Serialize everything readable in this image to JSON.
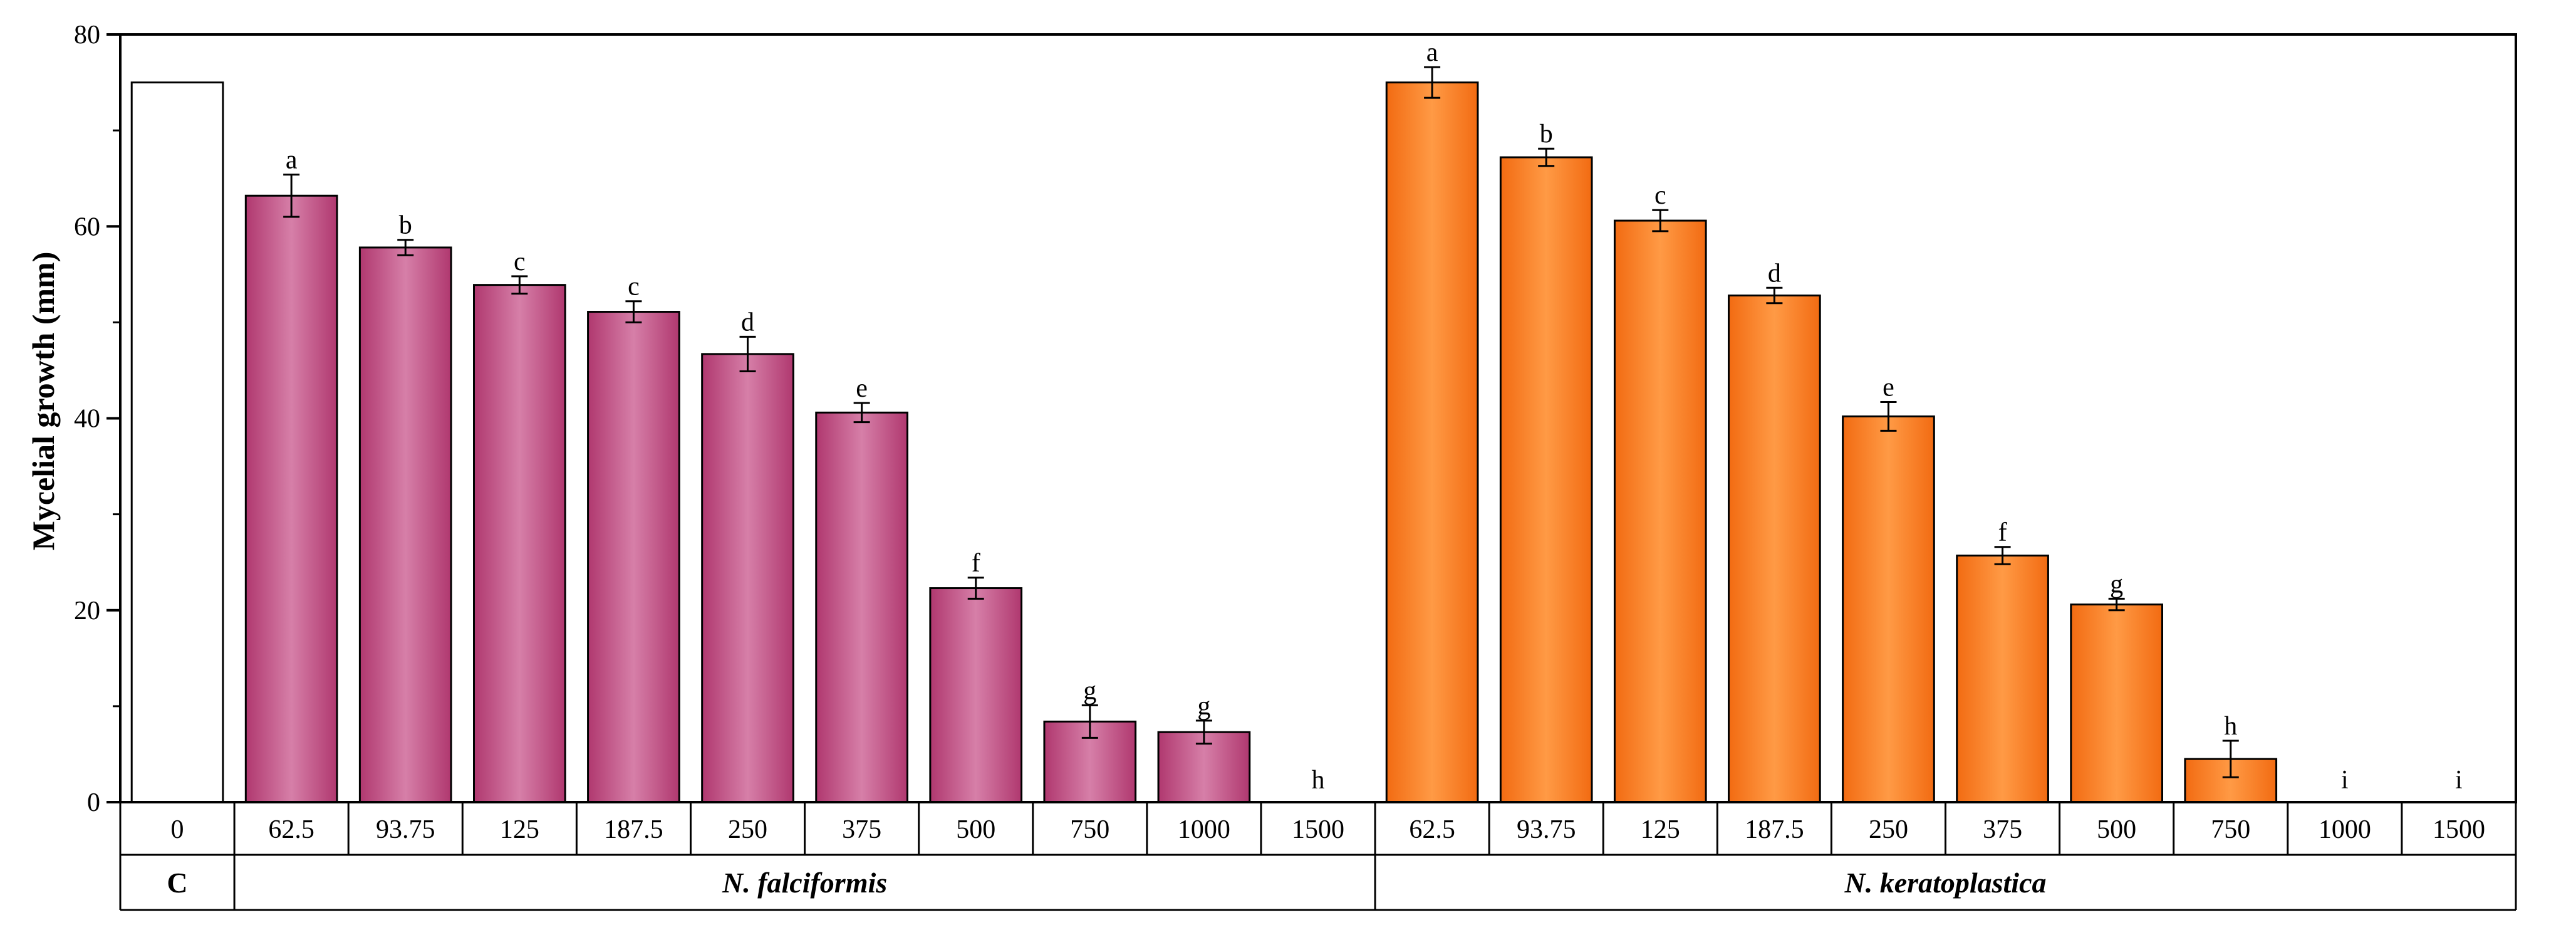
{
  "chart_data": {
    "type": "bar",
    "title": "",
    "xlabel": "",
    "ylabel": "Mycelial growth (mm)",
    "ylim": [
      0,
      80
    ],
    "yticks": [
      0,
      20,
      40,
      60,
      80
    ],
    "grid": false,
    "control": {
      "group_label": "C",
      "category": "0",
      "value": 75.0,
      "color": "#ffffff"
    },
    "groups": [
      {
        "name": "N. falciformis",
        "color_dark": "#b0386f",
        "color_light": "#d67fa8",
        "categories": [
          "62.5",
          "93.75",
          "125",
          "187.5",
          "250",
          "375",
          "500",
          "750",
          "1000",
          "1500"
        ],
        "values": [
          63.2,
          57.8,
          53.9,
          51.1,
          46.7,
          40.6,
          22.3,
          8.4,
          7.3,
          0
        ],
        "errors": [
          2.2,
          0.8,
          0.9,
          1.1,
          1.8,
          1.0,
          1.1,
          1.7,
          1.2,
          0
        ],
        "letters": [
          "a",
          "b",
          "c",
          "c",
          "d",
          "e",
          "f",
          "g",
          "g",
          "h"
        ]
      },
      {
        "name": "N. keratoplastica",
        "color_dark": "#f26b12",
        "color_light": "#ff9a45",
        "categories": [
          "62.5",
          "93.75",
          "125",
          "187.5",
          "250",
          "375",
          "500",
          "750",
          "1000",
          "1500"
        ],
        "values": [
          75.0,
          67.2,
          60.6,
          52.8,
          40.2,
          25.7,
          20.6,
          4.5,
          0,
          0
        ],
        "errors": [
          1.6,
          0.9,
          1.1,
          0.8,
          1.5,
          0.9,
          0.6,
          1.9,
          0,
          0
        ],
        "letters": [
          "a",
          "b",
          "c",
          "d",
          "e",
          "f",
          "g",
          "h",
          "i",
          "i"
        ]
      }
    ]
  }
}
